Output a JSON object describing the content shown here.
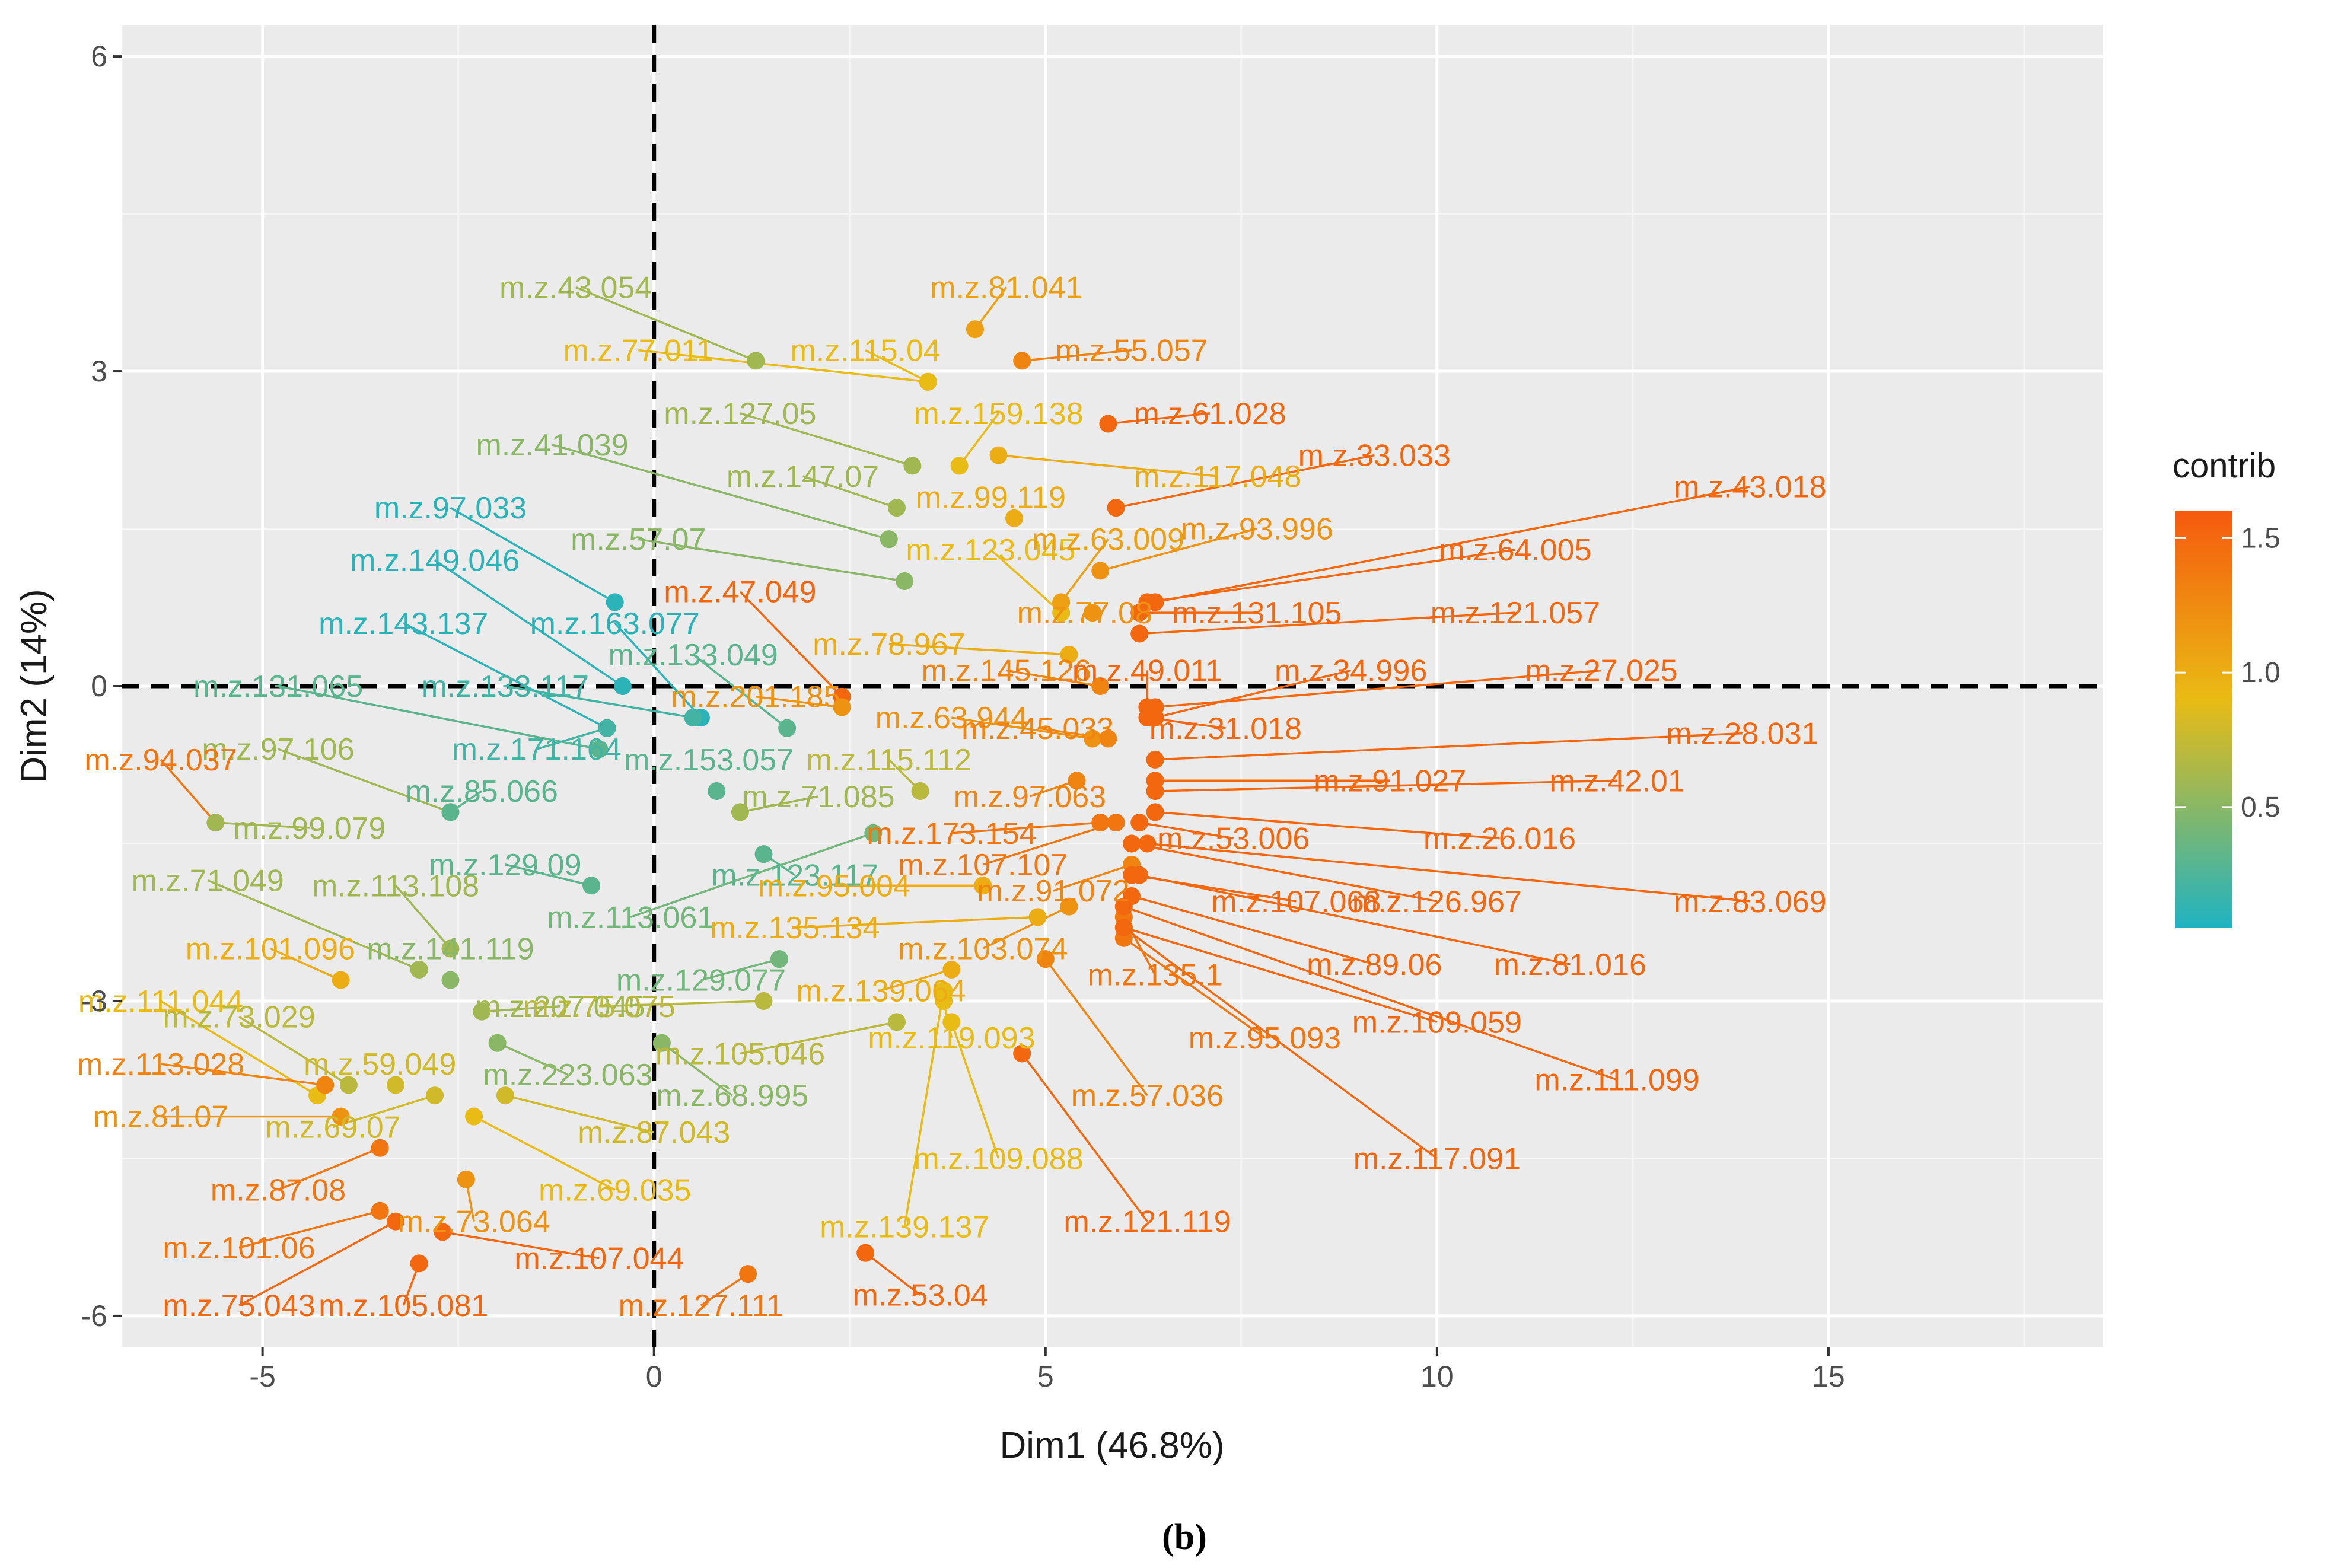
{
  "caption": "(b)",
  "colors": {
    "panel": "#ebebeb",
    "grid_major": "#ffffff",
    "grid_minor": "#f5f5f5",
    "gradient": [
      "#1fb3c2",
      "#e9bb14",
      "#f55a0e"
    ]
  },
  "chart_data": {
    "type": "scatter",
    "xlabel": "Dim1 (46.8%)",
    "ylabel": "Dim2 (14%)",
    "xlim": [
      -6.8,
      18.5
    ],
    "ylim": [
      -6.3,
      6.3
    ],
    "x_ticks": [
      -5,
      0,
      5,
      10,
      15
    ],
    "x_tick_labels": [
      "-5",
      "0",
      "5",
      "10",
      "15"
    ],
    "y_ticks": [
      -6,
      -3,
      0,
      3,
      6
    ],
    "y_tick_labels": [
      "-6",
      "-3",
      "0",
      "3",
      "6"
    ],
    "ref_lines": {
      "x": 0,
      "y": 0
    },
    "legend": {
      "title": "contrib",
      "range": [
        0.05,
        1.6
      ],
      "ticks": [
        0.5,
        1.0,
        1.5
      ],
      "tick_labels": [
        "0.5",
        "1.0",
        "1.5"
      ],
      "position": "right"
    },
    "points": [
      {
        "name": "m.z.43.054",
        "x": 1.3,
        "y": 3.1,
        "c": 0.6,
        "lx": -1.0,
        "ly": 3.8
      },
      {
        "name": "m.z.81.041",
        "x": 4.1,
        "y": 3.4,
        "c": 1.1,
        "lx": 4.5,
        "ly": 3.8
      },
      {
        "name": "m.z.77.011",
        "x": 3.5,
        "y": 2.9,
        "c": 0.9,
        "lx": -0.2,
        "ly": 3.2
      },
      {
        "name": "m.z.115.04",
        "x": 3.5,
        "y": 2.9,
        "c": 0.9,
        "lx": 2.7,
        "ly": 3.2
      },
      {
        "name": "m.z.55.057",
        "x": 4.7,
        "y": 3.1,
        "c": 1.3,
        "lx": 6.1,
        "ly": 3.2
      },
      {
        "name": "m.z.127.05",
        "x": 3.3,
        "y": 2.1,
        "c": 0.6,
        "lx": 1.1,
        "ly": 2.6
      },
      {
        "name": "m.z.159.138",
        "x": 3.9,
        "y": 2.1,
        "c": 0.9,
        "lx": 4.4,
        "ly": 2.6
      },
      {
        "name": "m.z.61.028",
        "x": 5.8,
        "y": 2.5,
        "c": 1.5,
        "lx": 7.1,
        "ly": 2.6
      },
      {
        "name": "m.z.41.039",
        "x": 3.0,
        "y": 1.4,
        "c": 0.5,
        "lx": -1.3,
        "ly": 2.3
      },
      {
        "name": "m.z.147.07",
        "x": 3.1,
        "y": 1.7,
        "c": 0.6,
        "lx": 1.9,
        "ly": 2.0
      },
      {
        "name": "m.z.117.048",
        "x": 4.4,
        "y": 2.2,
        "c": 1.0,
        "lx": 7.2,
        "ly": 2.0
      },
      {
        "name": "m.z.33.033",
        "x": 5.9,
        "y": 1.7,
        "c": 1.5,
        "lx": 9.2,
        "ly": 2.2
      },
      {
        "name": "m.z.99.119",
        "x": 4.6,
        "y": 1.6,
        "c": 1.0,
        "lx": 4.3,
        "ly": 1.8
      },
      {
        "name": "m.z.43.018",
        "x": 6.4,
        "y": 0.8,
        "c": 1.5,
        "lx": 14.0,
        "ly": 1.9
      },
      {
        "name": "m.z.97.033",
        "x": -0.5,
        "y": 0.8,
        "c": 0.1,
        "lx": -2.6,
        "ly": 1.7
      },
      {
        "name": "m.z.57.07",
        "x": 3.2,
        "y": 1.0,
        "c": 0.5,
        "lx": -0.2,
        "ly": 1.4
      },
      {
        "name": "m.z.123.045",
        "x": 5.2,
        "y": 0.7,
        "c": 0.9,
        "lx": 4.3,
        "ly": 1.3
      },
      {
        "name": "m.z.63.009",
        "x": 5.2,
        "y": 0.8,
        "c": 1.1,
        "lx": 5.8,
        "ly": 1.4
      },
      {
        "name": "m.z.93.996",
        "x": 5.7,
        "y": 1.1,
        "c": 1.2,
        "lx": 7.7,
        "ly": 1.5
      },
      {
        "name": "m.z.64.005",
        "x": 6.3,
        "y": 0.8,
        "c": 1.5,
        "lx": 11.0,
        "ly": 1.3
      },
      {
        "name": "m.z.149.046",
        "x": -0.4,
        "y": 0.0,
        "c": 0.1,
        "lx": -2.8,
        "ly": 1.2
      },
      {
        "name": "m.z.47.049",
        "x": 2.4,
        "y": -0.1,
        "c": 1.5,
        "lx": 1.1,
        "ly": 0.9
      },
      {
        "name": "m.z.77.08",
        "x": 5.6,
        "y": 0.7,
        "c": 1.2,
        "lx": 5.5,
        "ly": 0.7
      },
      {
        "name": "m.z.131.105",
        "x": 6.2,
        "y": 0.7,
        "c": 1.5,
        "lx": 7.7,
        "ly": 0.7
      },
      {
        "name": "m.z.121.057",
        "x": 6.2,
        "y": 0.5,
        "c": 1.5,
        "lx": 11.0,
        "ly": 0.7
      },
      {
        "name": "m.z.143.137",
        "x": -0.6,
        "y": -0.4,
        "c": 0.1,
        "lx": -3.2,
        "ly": 0.6
      },
      {
        "name": "m.z.163.077",
        "x": 0.6,
        "y": -0.3,
        "c": 0.1,
        "lx": -0.5,
        "ly": 0.6
      },
      {
        "name": "m.z.133.049",
        "x": 1.7,
        "y": -0.4,
        "c": 0.3,
        "lx": 0.5,
        "ly": 0.3
      },
      {
        "name": "m.z.78.967",
        "x": 5.3,
        "y": 0.3,
        "c": 1.0,
        "lx": 3.0,
        "ly": 0.4
      },
      {
        "name": "m.z.145.126",
        "x": 5.7,
        "y": 0.0,
        "c": 1.3,
        "lx": 4.5,
        "ly": 0.15
      },
      {
        "name": "m.z.49.011",
        "x": 6.3,
        "y": -0.2,
        "c": 1.5,
        "lx": 6.3,
        "ly": 0.15
      },
      {
        "name": "m.z.34.996",
        "x": 6.4,
        "y": -0.3,
        "c": 1.5,
        "lx": 8.9,
        "ly": 0.15
      },
      {
        "name": "m.z.27.025",
        "x": 6.4,
        "y": -0.2,
        "c": 1.5,
        "lx": 12.1,
        "ly": 0.15
      },
      {
        "name": "m.z.131.065",
        "x": -0.7,
        "y": -0.6,
        "c": 0.3,
        "lx": -4.8,
        "ly": 0.0
      },
      {
        "name": "m.z.133.117",
        "x": 0.5,
        "y": -0.3,
        "c": 0.2,
        "lx": -1.9,
        "ly": 0.0
      },
      {
        "name": "m.z.201.185",
        "x": 2.4,
        "y": -0.2,
        "c": 1.2,
        "lx": 1.3,
        "ly": -0.1
      },
      {
        "name": "m.z.63.944",
        "x": 5.6,
        "y": -0.5,
        "c": 1.2,
        "lx": 3.8,
        "ly": -0.3
      },
      {
        "name": "m.z.45.033",
        "x": 5.8,
        "y": -0.5,
        "c": 1.3,
        "lx": 4.9,
        "ly": -0.4
      },
      {
        "name": "m.z.31.018",
        "x": 6.3,
        "y": -0.3,
        "c": 1.5,
        "lx": 7.3,
        "ly": -0.4
      },
      {
        "name": "m.z.28.031",
        "x": 6.4,
        "y": -0.7,
        "c": 1.5,
        "lx": 13.9,
        "ly": -0.45
      },
      {
        "name": "m.z.97.106",
        "x": -2.6,
        "y": -1.2,
        "c": 0.6,
        "lx": -4.8,
        "ly": -0.6
      },
      {
        "name": "m.z.171.164",
        "x": -0.6,
        "y": -0.4,
        "c": 0.2,
        "lx": -1.5,
        "ly": -0.6
      },
      {
        "name": "m.z.153.057",
        "x": 0.8,
        "y": -1.0,
        "c": 0.3,
        "lx": 0.7,
        "ly": -0.7
      },
      {
        "name": "m.z.115.112",
        "x": 3.4,
        "y": -1.0,
        "c": 0.7,
        "lx": 3.0,
        "ly": -0.7
      },
      {
        "name": "m.z.94.037",
        "x": -5.6,
        "y": -1.3,
        "c": 1.4,
        "lx": -6.3,
        "ly": -0.7
      },
      {
        "name": "m.z.85.066",
        "x": -2.6,
        "y": -1.2,
        "c": 0.3,
        "lx": -2.2,
        "ly": -1.0
      },
      {
        "name": "m.z.71.085",
        "x": 1.1,
        "y": -1.2,
        "c": 0.6,
        "lx": 2.1,
        "ly": -1.05
      },
      {
        "name": "m.z.97.063",
        "x": 5.4,
        "y": -0.9,
        "c": 1.3,
        "lx": 4.8,
        "ly": -1.05
      },
      {
        "name": "m.z.91.027",
        "x": 6.4,
        "y": -0.9,
        "c": 1.5,
        "lx": 9.4,
        "ly": -0.9
      },
      {
        "name": "m.z.42.01",
        "x": 6.4,
        "y": -1.0,
        "c": 1.5,
        "lx": 12.3,
        "ly": -0.9
      },
      {
        "name": "m.z.99.079",
        "x": -5.6,
        "y": -1.3,
        "c": 0.6,
        "lx": -4.4,
        "ly": -1.35
      },
      {
        "name": "m.z.173.154",
        "x": 5.7,
        "y": -1.3,
        "c": 1.4,
        "lx": 3.8,
        "ly": -1.4
      },
      {
        "name": "m.z.53.006",
        "x": 6.2,
        "y": -1.3,
        "c": 1.5,
        "lx": 7.4,
        "ly": -1.45
      },
      {
        "name": "m.z.26.016",
        "x": 6.4,
        "y": -1.2,
        "c": 1.5,
        "lx": 10.8,
        "ly": -1.45
      },
      {
        "name": "m.z.129.09",
        "x": -0.8,
        "y": -1.9,
        "c": 0.3,
        "lx": -1.9,
        "ly": -1.7
      },
      {
        "name": "m.z.123.117",
        "x": 1.4,
        "y": -1.6,
        "c": 0.3,
        "lx": 1.8,
        "ly": -1.8
      },
      {
        "name": "m.z.107.107",
        "x": 5.9,
        "y": -1.3,
        "c": 1.4,
        "lx": 4.2,
        "ly": -1.7
      },
      {
        "name": "m.z.71.049",
        "x": -3.0,
        "y": -2.7,
        "c": 0.6,
        "lx": -5.7,
        "ly": -1.85
      },
      {
        "name": "m.z.113.108",
        "x": -2.6,
        "y": -2.5,
        "c": 0.6,
        "lx": -3.3,
        "ly": -1.9
      },
      {
        "name": "m.z.95.004",
        "x": 4.2,
        "y": -1.9,
        "c": 1.0,
        "lx": 2.3,
        "ly": -1.9
      },
      {
        "name": "m.z.91.072",
        "x": 6.1,
        "y": -1.7,
        "c": 1.3,
        "lx": 5.1,
        "ly": -1.95
      },
      {
        "name": "m.z.107.068",
        "x": 6.1,
        "y": -1.8,
        "c": 1.5,
        "lx": 8.2,
        "ly": -2.05
      },
      {
        "name": "m.z.126.967",
        "x": 6.1,
        "y": -1.5,
        "c": 1.5,
        "lx": 10.0,
        "ly": -2.05
      },
      {
        "name": "m.z.83.069",
        "x": 6.3,
        "y": -1.5,
        "c": 1.5,
        "lx": 14.0,
        "ly": -2.05
      },
      {
        "name": "m.z.113.061",
        "x": 2.8,
        "y": -1.4,
        "c": 0.4,
        "lx": -0.3,
        "ly": -2.2
      },
      {
        "name": "m.z.135.134",
        "x": 4.9,
        "y": -2.2,
        "c": 1.0,
        "lx": 1.8,
        "ly": -2.3
      },
      {
        "name": "m.z.101.096",
        "x": -4.0,
        "y": -2.8,
        "c": 1.0,
        "lx": -4.9,
        "ly": -2.5
      },
      {
        "name": "m.z.141.119",
        "x": -2.6,
        "y": -2.8,
        "c": 0.5,
        "lx": -2.6,
        "ly": -2.5
      },
      {
        "name": "m.z.103.074",
        "x": 5.3,
        "y": -2.1,
        "c": 1.2,
        "lx": 4.2,
        "ly": -2.5
      },
      {
        "name": "m.z.89.06",
        "x": 6.1,
        "y": -2.0,
        "c": 1.5,
        "lx": 9.2,
        "ly": -2.65
      },
      {
        "name": "m.z.81.016",
        "x": 6.2,
        "y": -1.8,
        "c": 1.5,
        "lx": 11.7,
        "ly": -2.65
      },
      {
        "name": "m.z.129.077",
        "x": 1.6,
        "y": -2.6,
        "c": 0.4,
        "lx": 0.6,
        "ly": -2.8
      },
      {
        "name": "m.z.135.1",
        "x": 6.0,
        "y": -2.2,
        "c": 1.4,
        "lx": 6.4,
        "ly": -2.75
      },
      {
        "name": "m.z.139.064",
        "x": 3.8,
        "y": -2.7,
        "c": 1.0,
        "lx": 2.9,
        "ly": -2.9
      },
      {
        "name": "m.z.111.044",
        "x": -4.3,
        "y": -3.9,
        "c": 0.9,
        "lx": -6.3,
        "ly": -3.0
      },
      {
        "name": "m.z.207.045",
        "x": -2.2,
        "y": -3.1,
        "c": 0.6,
        "lx": -1.2,
        "ly": -3.05
      },
      {
        "name": "m.z.75.075",
        "x": 1.4,
        "y": -3.0,
        "c": 0.7,
        "lx": -0.7,
        "ly": -3.05
      },
      {
        "name": "m.z.73.029",
        "x": -3.9,
        "y": -3.8,
        "c": 0.7,
        "lx": -5.3,
        "ly": -3.15
      },
      {
        "name": "m.z.109.059",
        "x": 6.0,
        "y": -2.3,
        "c": 1.5,
        "lx": 10.0,
        "ly": -3.2
      },
      {
        "name": "m.z.119.093",
        "x": 3.7,
        "y": -3.0,
        "c": 0.9,
        "lx": 3.8,
        "ly": -3.35
      },
      {
        "name": "m.z.95.093",
        "x": 6.0,
        "y": -2.4,
        "c": 1.4,
        "lx": 7.8,
        "ly": -3.35
      },
      {
        "name": "m.z.105.046",
        "x": 3.1,
        "y": -3.2,
        "c": 0.7,
        "lx": 1.1,
        "ly": -3.5
      },
      {
        "name": "m.z.113.028",
        "x": -4.2,
        "y": -3.8,
        "c": 1.3,
        "lx": -6.3,
        "ly": -3.6
      },
      {
        "name": "m.z.59.049",
        "x": -3.3,
        "y": -3.8,
        "c": 0.8,
        "lx": -3.5,
        "ly": -3.6
      },
      {
        "name": "m.z.223.063",
        "x": -2.0,
        "y": -3.4,
        "c": 0.5,
        "lx": -1.1,
        "ly": -3.7
      },
      {
        "name": "m.z.111.099",
        "x": 6.0,
        "y": -2.1,
        "c": 1.5,
        "lx": 12.3,
        "ly": -3.75
      },
      {
        "name": "m.z.68.995",
        "x": 0.1,
        "y": -3.4,
        "c": 0.5,
        "lx": 1.0,
        "ly": -3.9
      },
      {
        "name": "m.z.57.036",
        "x": 5.0,
        "y": -2.6,
        "c": 1.3,
        "lx": 6.3,
        "ly": -3.9
      },
      {
        "name": "m.z.81.07",
        "x": -4.0,
        "y": -4.1,
        "c": 1.2,
        "lx": -6.3,
        "ly": -4.1
      },
      {
        "name": "m.z.69.07",
        "x": -2.8,
        "y": -3.9,
        "c": 0.8,
        "lx": -4.1,
        "ly": -4.2
      },
      {
        "name": "m.z.87.043",
        "x": -1.9,
        "y": -3.9,
        "c": 0.8,
        "lx": 0.0,
        "ly": -4.25
      },
      {
        "name": "m.z.109.088",
        "x": 3.8,
        "y": -3.2,
        "c": 0.9,
        "lx": 4.4,
        "ly": -4.5
      },
      {
        "name": "m.z.117.091",
        "x": 6.0,
        "y": -2.3,
        "c": 1.5,
        "lx": 10.0,
        "ly": -4.5
      },
      {
        "name": "m.z.87.08",
        "x": -3.5,
        "y": -4.4,
        "c": 1.4,
        "lx": -4.8,
        "ly": -4.8
      },
      {
        "name": "m.z.69.035",
        "x": -2.3,
        "y": -4.1,
        "c": 0.9,
        "lx": -0.5,
        "ly": -4.8
      },
      {
        "name": "m.z.73.064",
        "x": -2.4,
        "y": -4.7,
        "c": 1.2,
        "lx": -2.3,
        "ly": -5.1
      },
      {
        "name": "m.z.121.119",
        "x": 4.7,
        "y": -3.5,
        "c": 1.5,
        "lx": 6.3,
        "ly": -5.1
      },
      {
        "name": "m.z.139.137",
        "x": 3.7,
        "y": -2.9,
        "c": 0.9,
        "lx": 3.2,
        "ly": -5.15
      },
      {
        "name": "m.z.101.06",
        "x": -3.5,
        "y": -5.0,
        "c": 1.4,
        "lx": -5.3,
        "ly": -5.35
      },
      {
        "name": "m.z.107.044",
        "x": -2.7,
        "y": -5.2,
        "c": 1.5,
        "lx": -0.7,
        "ly": -5.45
      },
      {
        "name": "m.z.53.04",
        "x": 2.7,
        "y": -5.4,
        "c": 1.5,
        "lx": 3.4,
        "ly": -5.8
      },
      {
        "name": "m.z.75.043",
        "x": -3.3,
        "y": -5.1,
        "c": 1.5,
        "lx": -5.3,
        "ly": -5.9
      },
      {
        "name": "m.z.105.081",
        "x": -3.0,
        "y": -5.5,
        "c": 1.5,
        "lx": -3.2,
        "ly": -5.9
      },
      {
        "name": "m.z.127.111",
        "x": 1.2,
        "y": -5.6,
        "c": 1.4,
        "lx": 0.6,
        "ly": -5.9
      }
    ]
  }
}
